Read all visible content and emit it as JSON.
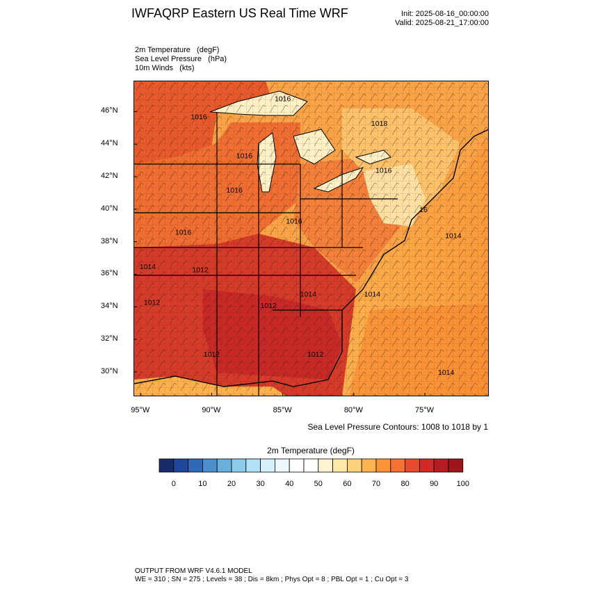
{
  "header": {
    "title": "IWFAQRP Eastern US Real Time WRF",
    "init": "Init: 2025-08-16_00:00:00",
    "valid": "Valid: 2025-08-21_17:00:00"
  },
  "variables": [
    "2m Temperature   (degF)",
    "Sea Level Pressure   (hPa)",
    "10m Winds   (kts)"
  ],
  "map": {
    "lat_labels": [
      "46°N",
      "44°N",
      "42°N",
      "40°N",
      "38°N",
      "36°N",
      "34°N",
      "32°N",
      "30°N"
    ],
    "lat_values": [
      46,
      44,
      42,
      40,
      38,
      36,
      34,
      32,
      30
    ],
    "lon_labels": [
      "95°W",
      "90°W",
      "85°W",
      "80°W",
      "75°W"
    ],
    "lon_values": [
      -95,
      -90,
      -85,
      -80,
      -75
    ],
    "extent": {
      "lon_min": -95.5,
      "lon_max": -70.5,
      "lat_min": 28.5,
      "lat_max": 47.9
    },
    "pressure_labels": [
      {
        "text": "1016",
        "lon": -85.0,
        "lat": 46.8
      },
      {
        "text": "1016",
        "lon": -90.9,
        "lat": 45.7
      },
      {
        "text": "1018",
        "lon": -78.2,
        "lat": 45.3
      },
      {
        "text": "1016",
        "lon": -87.7,
        "lat": 43.3
      },
      {
        "text": "1016",
        "lon": -77.9,
        "lat": 42.4
      },
      {
        "text": "1016",
        "lon": -88.4,
        "lat": 41.2
      },
      {
        "text": "1016",
        "lon": -84.2,
        "lat": 39.3
      },
      {
        "text": "1016",
        "lon": -92.0,
        "lat": 38.6
      },
      {
        "text": "16",
        "lon": -75.1,
        "lat": 40.0
      },
      {
        "text": "1014",
        "lon": -73.0,
        "lat": 38.4
      },
      {
        "text": "1014",
        "lon": -94.5,
        "lat": 36.5
      },
      {
        "text": "1012",
        "lon": -90.8,
        "lat": 36.3
      },
      {
        "text": "1012",
        "lon": -86.0,
        "lat": 34.1
      },
      {
        "text": "1014",
        "lon": -83.2,
        "lat": 34.8
      },
      {
        "text": "1014",
        "lon": -78.7,
        "lat": 34.8
      },
      {
        "text": "1012",
        "lon": -94.2,
        "lat": 34.3
      },
      {
        "text": "1012",
        "lon": -90.0,
        "lat": 31.1
      },
      {
        "text": "1012",
        "lon": -82.7,
        "lat": 31.1
      },
      {
        "text": "1014",
        "lon": -73.5,
        "lat": 30.0
      }
    ]
  },
  "contour_note": "Sea Level Pressure Contours: 1008 to 1018 by 1",
  "colorbar": {
    "title": "2m Temperature  (degF)",
    "colors": [
      "#172c69",
      "#20489a",
      "#2f6ab8",
      "#4c8fcc",
      "#6aaedc",
      "#8ccbea",
      "#b2e0f5",
      "#d6f0fa",
      "#edf8fd",
      "#ffffff",
      "#ffffff",
      "#fff5d3",
      "#fee9a8",
      "#fed17c",
      "#fdb450",
      "#fb9436",
      "#f57231",
      "#e54b2c",
      "#cf2a27",
      "#b71c21",
      "#9b1719"
    ],
    "labels": [
      "0",
      "10",
      "20",
      "30",
      "40",
      "50",
      "60",
      "70",
      "80",
      "90",
      "100"
    ]
  },
  "footer": {
    "line1": "OUTPUT FROM WRF V4.6.1 MODEL",
    "line2": "WE = 310 ; SN = 275 ; Levels = 38 ; Dis = 8km ; Phys Opt = 8 ; PBL Opt = 1 ; Cu Opt = 3"
  }
}
